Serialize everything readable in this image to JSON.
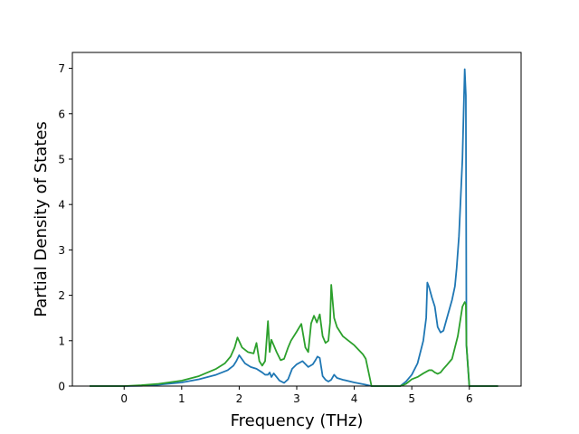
{
  "chart_data": {
    "type": "line",
    "title": "",
    "xlabel": "Frequency (THz)",
    "ylabel": "Partial Density of States",
    "xlim": [
      -0.9,
      6.9
    ],
    "ylim": [
      0,
      7.35
    ],
    "xticks": [
      "0",
      "1",
      "2",
      "3",
      "4",
      "5",
      "6"
    ],
    "yticks": [
      "0",
      "1",
      "2",
      "3",
      "4",
      "5",
      "6",
      "7"
    ],
    "grid": false,
    "legend": "none",
    "series": [
      {
        "color": "#1f77b4",
        "x": [
          -0.6,
          0.0,
          0.3,
          0.6,
          1.0,
          1.3,
          1.6,
          1.8,
          1.9,
          1.95,
          2.0,
          2.1,
          2.2,
          2.3,
          2.4,
          2.45,
          2.5,
          2.53,
          2.56,
          2.6,
          2.7,
          2.78,
          2.85,
          2.92,
          3.0,
          3.1,
          3.2,
          3.28,
          3.33,
          3.36,
          3.4,
          3.45,
          3.5,
          3.55,
          3.6,
          3.65,
          3.7,
          3.8,
          4.0,
          4.2,
          4.3,
          4.8,
          4.9,
          5.0,
          5.1,
          5.2,
          5.25,
          5.27,
          5.3,
          5.35,
          5.4,
          5.45,
          5.5,
          5.55,
          5.6,
          5.7,
          5.75,
          5.78,
          5.82,
          5.88,
          5.92,
          5.94,
          5.95,
          6.0,
          6.5
        ],
        "values": [
          0,
          0,
          0.005,
          0.03,
          0.08,
          0.15,
          0.25,
          0.35,
          0.45,
          0.55,
          0.68,
          0.5,
          0.42,
          0.38,
          0.3,
          0.25,
          0.25,
          0.3,
          0.2,
          0.28,
          0.12,
          0.07,
          0.15,
          0.38,
          0.48,
          0.55,
          0.42,
          0.48,
          0.58,
          0.65,
          0.62,
          0.22,
          0.14,
          0.1,
          0.14,
          0.25,
          0.18,
          0.14,
          0.08,
          0.03,
          0,
          0,
          0.1,
          0.25,
          0.5,
          1.0,
          1.5,
          2.28,
          2.18,
          1.95,
          1.75,
          1.3,
          1.18,
          1.22,
          1.45,
          1.9,
          2.2,
          2.6,
          3.3,
          5.0,
          6.98,
          6.4,
          0.9,
          0,
          0
        ]
      },
      {
        "color": "#2ca02c",
        "x": [
          -0.6,
          0.0,
          0.3,
          0.6,
          1.0,
          1.3,
          1.6,
          1.75,
          1.85,
          1.92,
          1.97,
          2.05,
          2.15,
          2.25,
          2.3,
          2.35,
          2.4,
          2.45,
          2.5,
          2.53,
          2.56,
          2.6,
          2.65,
          2.72,
          2.78,
          2.85,
          2.9,
          3.0,
          3.08,
          3.15,
          3.2,
          3.25,
          3.3,
          3.35,
          3.4,
          3.45,
          3.5,
          3.55,
          3.58,
          3.6,
          3.65,
          3.7,
          3.8,
          4.0,
          4.15,
          4.2,
          4.3,
          4.8,
          4.9,
          5.0,
          5.1,
          5.2,
          5.3,
          5.35,
          5.4,
          5.45,
          5.5,
          5.55,
          5.6,
          5.7,
          5.75,
          5.8,
          5.88,
          5.92,
          5.94,
          5.95,
          6.0,
          6.5
        ],
        "values": [
          0,
          0,
          0.02,
          0.05,
          0.12,
          0.22,
          0.38,
          0.5,
          0.65,
          0.85,
          1.07,
          0.85,
          0.75,
          0.72,
          0.95,
          0.55,
          0.45,
          0.55,
          1.43,
          0.75,
          1.02,
          0.9,
          0.75,
          0.57,
          0.6,
          0.85,
          1.0,
          1.2,
          1.37,
          0.85,
          0.75,
          1.38,
          1.55,
          1.4,
          1.58,
          1.1,
          0.95,
          1.0,
          1.4,
          2.23,
          1.5,
          1.3,
          1.1,
          0.9,
          0.7,
          0.6,
          0,
          0,
          0.05,
          0.15,
          0.2,
          0.28,
          0.35,
          0.35,
          0.3,
          0.27,
          0.3,
          0.38,
          0.45,
          0.6,
          0.85,
          1.1,
          1.75,
          1.85,
          1.8,
          0.9,
          0,
          0
        ]
      }
    ]
  }
}
